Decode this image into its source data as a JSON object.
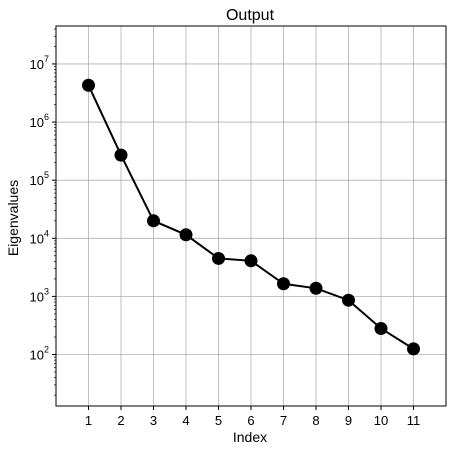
{
  "chart_data": {
    "type": "line",
    "title": "Output",
    "xlabel": "Index",
    "ylabel": "Eigenvalues",
    "y_scale": "log",
    "ylim": [
      13,
      45000000
    ],
    "xlim": [
      0,
      12
    ],
    "grid": true,
    "x": [
      1,
      2,
      3,
      4,
      5,
      6,
      7,
      8,
      9,
      10,
      11
    ],
    "x_tick_labels": [
      "1",
      "2",
      "3",
      "4",
      "5",
      "6",
      "7",
      "8",
      "9",
      "10",
      "11"
    ],
    "y_tick_exponents": [
      "2",
      "3",
      "4",
      "5",
      "6",
      "7"
    ],
    "y_tick_base": "10",
    "series": [
      {
        "values": [
          4300000,
          270000,
          20000,
          11500,
          4500,
          4100,
          1650,
          1380,
          860,
          280,
          125
        ],
        "color": "#000000",
        "marker": "circle"
      }
    ]
  }
}
